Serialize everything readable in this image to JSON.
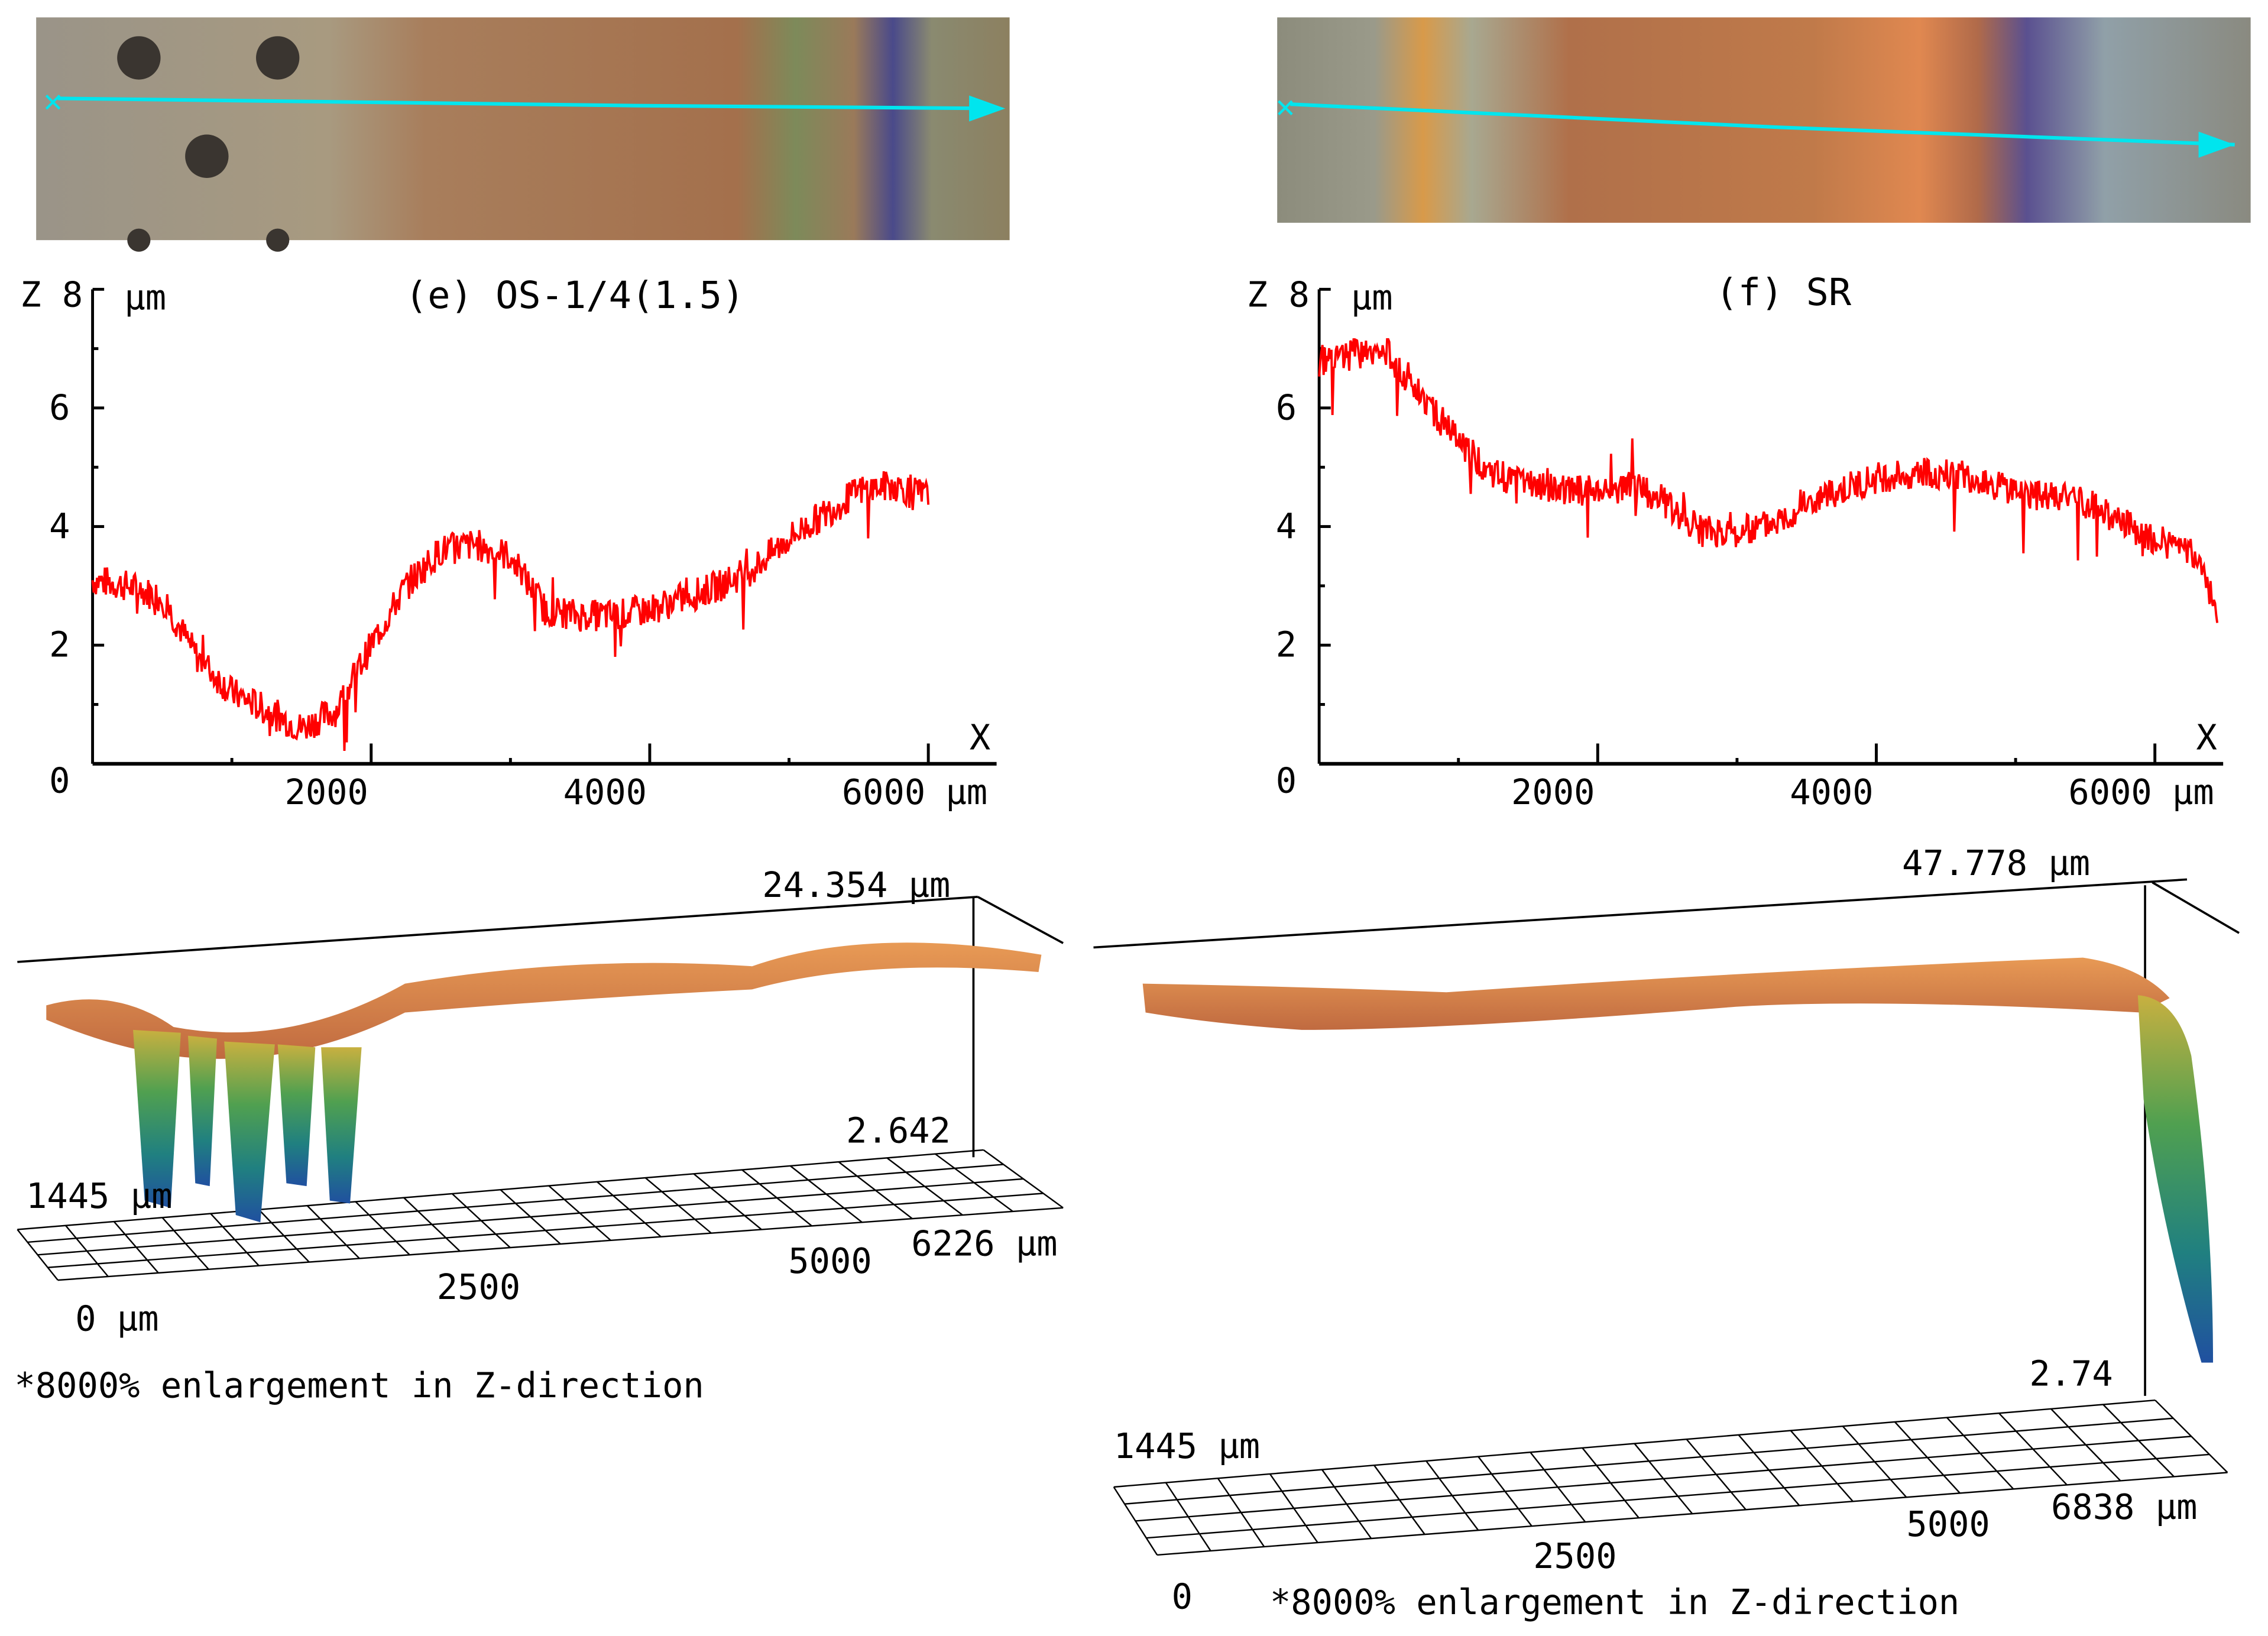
{
  "colors": {
    "profile": "#ff0000",
    "scan_line": "#00e5ee",
    "axis": "#000000"
  },
  "panel_e": {
    "title": "(e) OS-1/4(1.5)",
    "z_axis_label": "Z",
    "z_unit": "μm",
    "x_axis_label": "X",
    "x_unit": "μm",
    "surface3d": {
      "z_max": "24.354 μm",
      "z_min": "2.642",
      "y_extent": "1445 μm",
      "x_origin": "0 μm",
      "x_ticks": [
        "2500",
        "5000"
      ],
      "x_end": "6226 μm"
    },
    "note": "*8000% enlargement in Z-direction"
  },
  "panel_f": {
    "title": "(f) SR",
    "z_axis_label": "Z",
    "z_unit": "μm",
    "x_axis_label": "X",
    "x_unit": "μm",
    "surface3d": {
      "z_max": "47.778 μm",
      "z_min": "2.74",
      "y_extent": "1445 μm",
      "x_origin": "0",
      "x_ticks": [
        "2500",
        "5000"
      ],
      "x_end": "6838 μm"
    },
    "note": "*8000% enlargement in Z-direction"
  },
  "chart_data": [
    {
      "type": "line",
      "title": "(e) OS-1/4(1.5)",
      "xlabel": "X (μm)",
      "ylabel": "Z (μm)",
      "xlim": [
        0,
        6400
      ],
      "ylim": [
        0,
        8
      ],
      "x_ticks": [
        "2000",
        "4000",
        "6000"
      ],
      "y_ticks": [
        "0",
        "2",
        "4",
        "6",
        "8"
      ],
      "grid": false,
      "series": [
        {
          "name": "profile",
          "x": [
            0,
            250,
            500,
            750,
            1000,
            1250,
            1500,
            1750,
            2000,
            2250,
            2500,
            2750,
            3000,
            3250,
            3500,
            3750,
            4000,
            4250,
            4500,
            4750,
            5000,
            5250,
            5500,
            5750,
            6000
          ],
          "values": [
            3.1,
            3.0,
            2.8,
            1.8,
            1.2,
            0.9,
            0.6,
            0.9,
            2.0,
            3.0,
            3.6,
            3.7,
            3.5,
            2.6,
            2.5,
            2.5,
            2.6,
            2.8,
            3.0,
            3.3,
            3.8,
            4.2,
            4.6,
            4.7,
            4.5
          ]
        }
      ]
    },
    {
      "type": "line",
      "title": "(f) SR",
      "xlabel": "X (μm)",
      "ylabel": "Z (μm)",
      "xlim": [
        0,
        6400
      ],
      "ylim": [
        0,
        8
      ],
      "x_ticks": [
        "2000",
        "4000",
        "6000"
      ],
      "y_ticks": [
        "0",
        "2",
        "4",
        "6",
        "8"
      ],
      "grid": false,
      "series": [
        {
          "name": "profile",
          "x": [
            0,
            250,
            500,
            750,
            1000,
            1250,
            1500,
            1750,
            2000,
            2250,
            2500,
            2750,
            3000,
            3250,
            3500,
            3750,
            4000,
            4250,
            4500,
            4750,
            5000,
            5250,
            5500,
            5750,
            6000,
            6250,
            6450
          ],
          "values": [
            6.8,
            6.9,
            6.9,
            6.2,
            5.4,
            4.9,
            4.7,
            4.6,
            4.6,
            4.7,
            4.4,
            3.9,
            3.9,
            4.1,
            4.4,
            4.6,
            4.8,
            4.9,
            4.9,
            4.8,
            4.6,
            4.5,
            4.4,
            4.1,
            3.8,
            3.6,
            2.6
          ]
        }
      ]
    }
  ]
}
